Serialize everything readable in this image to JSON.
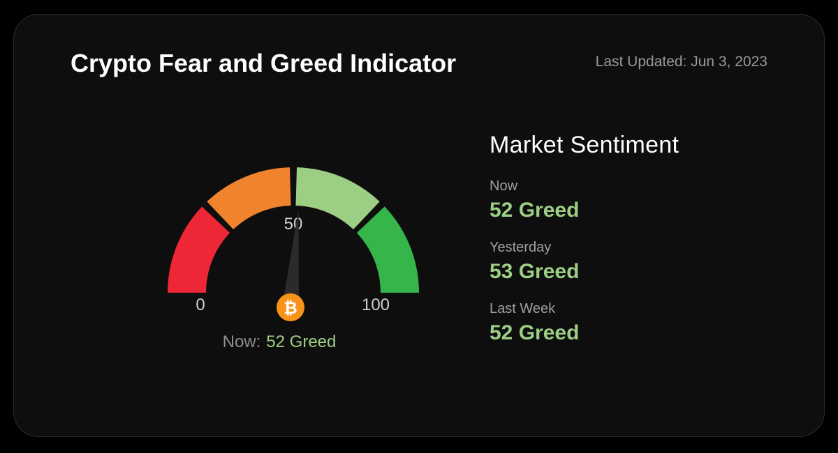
{
  "header": {
    "title": "Crypto Fear and Greed Indicator",
    "last_updated": "Last Updated: Jun 3, 2023"
  },
  "gauge": {
    "min_label": "0",
    "mid_label": "50",
    "max_label": "100",
    "value": 52,
    "coin_symbol": "₿",
    "coin_icon": "bitcoin-icon",
    "needle_icon": "gauge-needle",
    "caption_label": "Now:",
    "caption_value": "52 Greed",
    "segment_colors": [
      "#ee2737",
      "#f0832e",
      "#9ccf84",
      "#36b54a"
    ],
    "coin_color": "#f7931a"
  },
  "sentiment": {
    "title": "Market Sentiment",
    "items": [
      {
        "label": "Now",
        "value": "52 Greed"
      },
      {
        "label": "Yesterday",
        "value": "53 Greed"
      },
      {
        "label": "Last Week",
        "value": "52 Greed"
      }
    ],
    "value_color": "#9ccf84"
  }
}
